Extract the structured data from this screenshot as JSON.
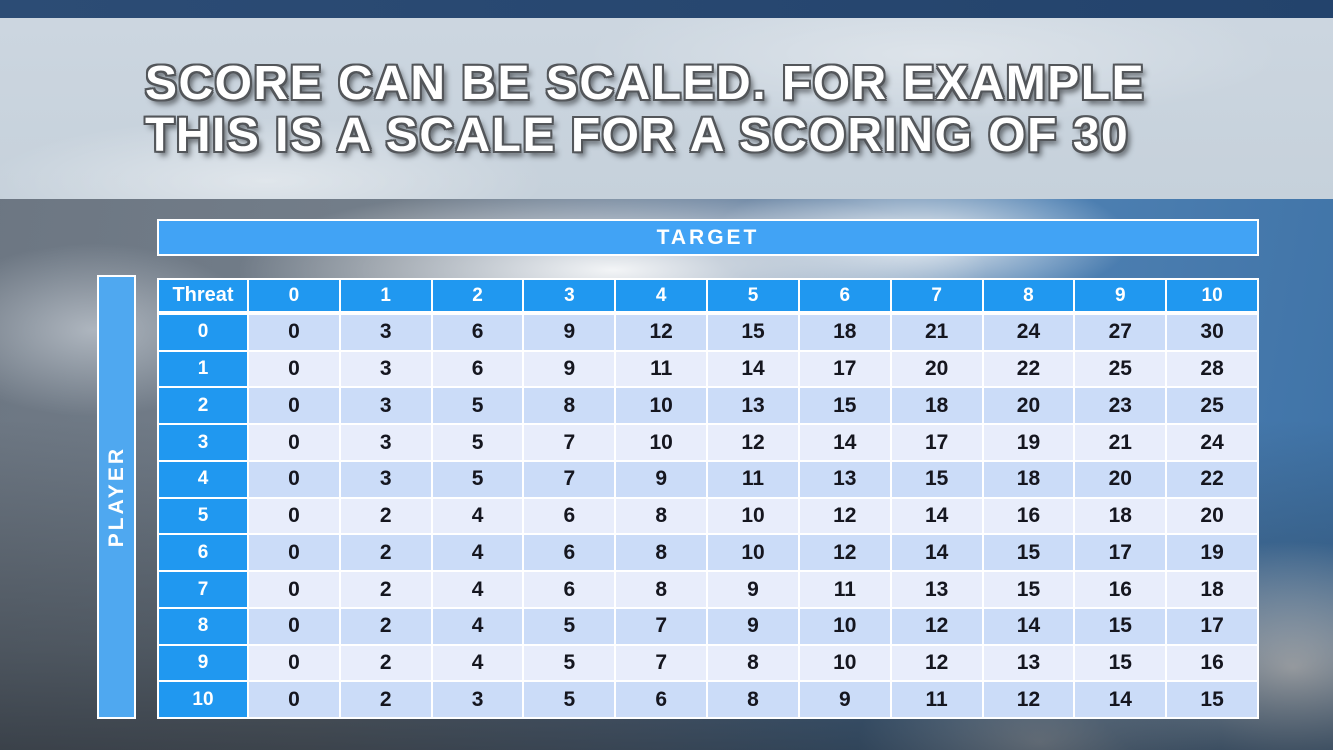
{
  "title": {
    "line1": "SCORE CAN BE SCALED. FOR EXAMPLE",
    "line2": "THIS IS A SCALE FOR A SCORING OF 30"
  },
  "table": {
    "column_axis_label": "TARGET",
    "row_axis_label": "PLAYER",
    "corner_label": "Threat",
    "column_headers": [
      "0",
      "1",
      "2",
      "3",
      "4",
      "5",
      "6",
      "7",
      "8",
      "9",
      "10"
    ],
    "row_headers": [
      "0",
      "1",
      "2",
      "3",
      "4",
      "5",
      "6",
      "7",
      "8",
      "9",
      "10"
    ],
    "rows": [
      [
        0,
        3,
        6,
        9,
        12,
        15,
        18,
        21,
        24,
        27,
        30
      ],
      [
        0,
        3,
        6,
        9,
        11,
        14,
        17,
        20,
        22,
        25,
        28
      ],
      [
        0,
        3,
        5,
        8,
        10,
        13,
        15,
        18,
        20,
        23,
        25
      ],
      [
        0,
        3,
        5,
        7,
        10,
        12,
        14,
        17,
        19,
        21,
        24
      ],
      [
        0,
        3,
        5,
        7,
        9,
        11,
        13,
        15,
        18,
        20,
        22
      ],
      [
        0,
        2,
        4,
        6,
        8,
        10,
        12,
        14,
        16,
        18,
        20
      ],
      [
        0,
        2,
        4,
        6,
        8,
        10,
        12,
        14,
        15,
        17,
        19
      ],
      [
        0,
        2,
        4,
        6,
        8,
        9,
        11,
        13,
        15,
        16,
        18
      ],
      [
        0,
        2,
        4,
        5,
        7,
        9,
        10,
        12,
        14,
        15,
        17
      ],
      [
        0,
        2,
        4,
        5,
        7,
        8,
        10,
        12,
        13,
        15,
        16
      ],
      [
        0,
        2,
        3,
        5,
        6,
        8,
        9,
        11,
        12,
        14,
        15
      ]
    ],
    "max_score": 30
  },
  "colors": {
    "header_blue": "#2098F0",
    "target_blue": "#41A3F5",
    "player_blue": "#4FA8F0",
    "row_even": "#CBDCF8",
    "row_odd": "#E8EDFB",
    "cell_text": "#15161F"
  }
}
